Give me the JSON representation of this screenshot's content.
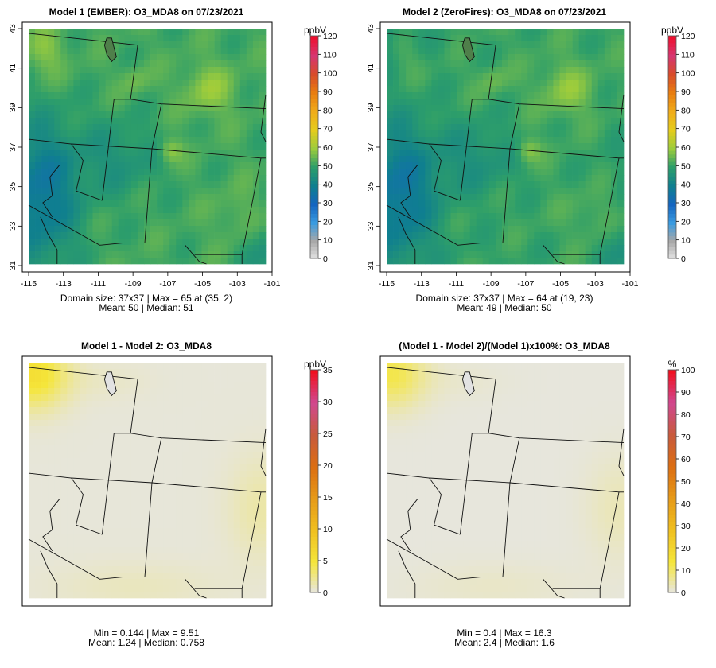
{
  "panels": [
    {
      "id": "m1",
      "title": "Model 1 (EMBER): O3_MDA8 on 07/23/2021",
      "unit": "ppbV",
      "colorbar_ticks": [
        0,
        10,
        20,
        30,
        40,
        50,
        60,
        70,
        80,
        90,
        100,
        110,
        120
      ],
      "stats_line1": "Domain size: 37x37 | Max = 65 at (35, 2)",
      "stats_line2": "Mean: 50 |  Median: 51",
      "show_axes": true
    },
    {
      "id": "m2",
      "title": "Model 2 (ZeroFires): O3_MDA8 on 07/23/2021",
      "unit": "ppbV",
      "colorbar_ticks": [
        0,
        10,
        20,
        30,
        40,
        50,
        60,
        70,
        80,
        90,
        100,
        110,
        120
      ],
      "stats_line1": "Domain size: 37x37 | Max = 64 at (19, 23)",
      "stats_line2": "Mean: 49 |  Median: 50",
      "show_axes": true
    },
    {
      "id": "diff",
      "title": "Model 1 - Model 2: O3_MDA8",
      "unit": "ppbV",
      "colorbar_ticks": [
        0,
        5,
        10,
        15,
        20,
        25,
        30,
        35
      ],
      "stats_line1": "Min = 0.144 | Max = 9.51",
      "stats_line2": "Mean: 1.24 |  Median: 0.758",
      "show_axes": false
    },
    {
      "id": "pct",
      "title": "(Model 1 - Model 2)/(Model 1)x100%: O3_MDA8",
      "unit": "%",
      "colorbar_ticks": [
        0,
        10,
        20,
        30,
        40,
        50,
        60,
        70,
        80,
        90,
        100
      ],
      "stats_line1": "Min = 0.4 | Max = 16.3",
      "stats_line2": "Mean: 2.4 |  Median: 1.6",
      "show_axes": false
    }
  ],
  "axes": {
    "lon_ticks": [
      "-115",
      "-113",
      "-111",
      "-109",
      "-107",
      "-105",
      "-103",
      "-101"
    ],
    "lat_ticks": [
      "31",
      "33",
      "35",
      "37",
      "39",
      "41",
      "43"
    ]
  },
  "colors": {
    "abs_scale": [
      "#e6e6e6",
      "#a8a8a8",
      "#3a9be0",
      "#1565c0",
      "#0f7f8f",
      "#2d9e6a",
      "#9ccc3c",
      "#e5cc1c",
      "#f0ad1a",
      "#e87d10",
      "#d84b2a",
      "#d63670",
      "#ee1030"
    ],
    "diff_scale": [
      "#e6e6e6",
      "#f5e63a",
      "#f0c020",
      "#e69a18",
      "#dc6e12",
      "#c85a3c",
      "#d04890",
      "#f01020"
    ]
  }
}
